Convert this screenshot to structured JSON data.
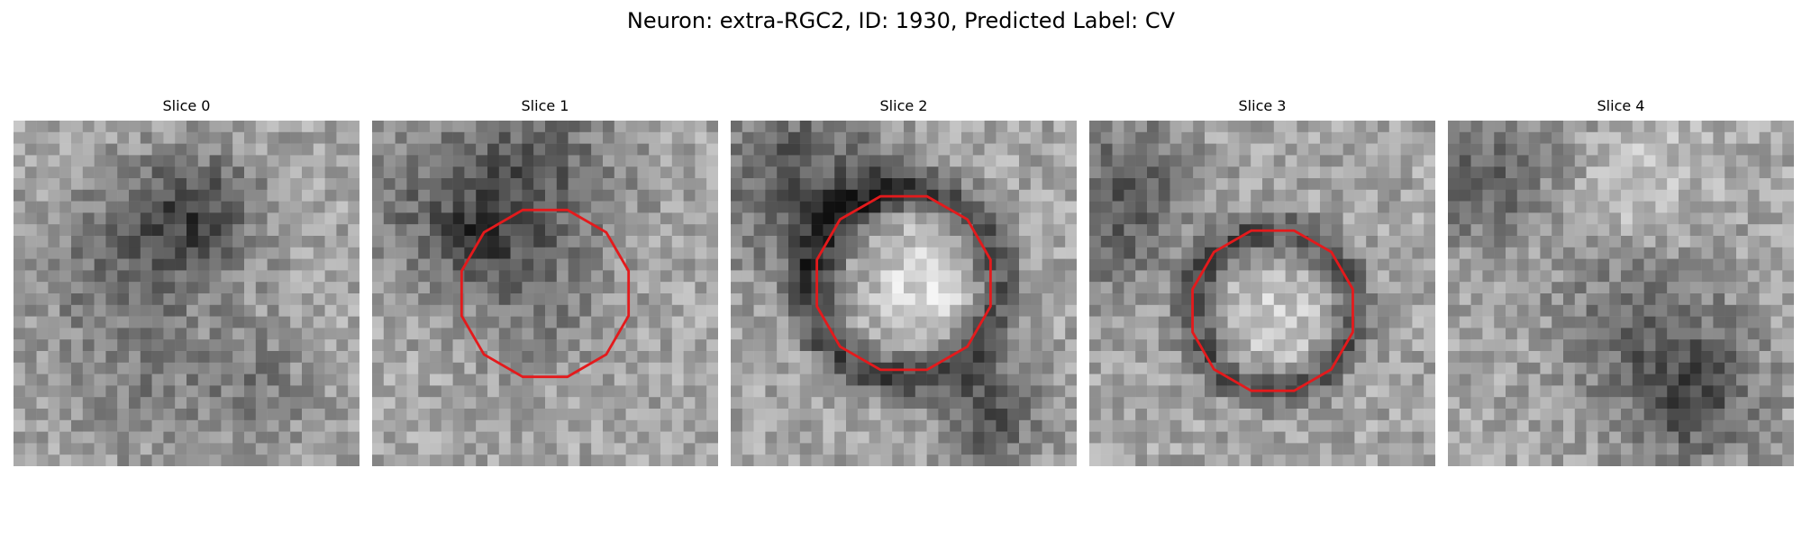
{
  "figure": {
    "title": "Neuron: extra-RGC2, ID: 1930, Predicted Label: CV"
  },
  "slices": [
    {
      "label": "Slice 0",
      "has_contour": false,
      "dark_spots": [
        [
          0.45,
          0.32,
          0.22,
          -70
        ],
        [
          0.55,
          0.25,
          0.15,
          -45
        ],
        [
          0.35,
          0.75,
          0.22,
          -35
        ],
        [
          0.7,
          0.78,
          0.18,
          -40
        ],
        [
          0.2,
          0.45,
          0.18,
          -25
        ]
      ]
    },
    {
      "label": "Slice 1",
      "has_contour": true,
      "contour_radius": 0.25,
      "contour_center": [
        0.5,
        0.5
      ],
      "dark_spots": [
        [
          0.45,
          0.18,
          0.25,
          -80
        ],
        [
          0.1,
          0.25,
          0.2,
          -40
        ],
        [
          0.45,
          0.55,
          0.2,
          -35
        ],
        [
          0.3,
          0.35,
          0.12,
          -60
        ]
      ]
    },
    {
      "label": "Slice 2",
      "has_contour": true,
      "contour_radius": 0.26,
      "contour_center": [
        0.5,
        0.47
      ],
      "ring": [
        0.5,
        0.47,
        0.27,
        0.07,
        -95
      ],
      "bright_spots": [
        [
          0.55,
          0.45,
          0.18,
          60
        ]
      ],
      "dark_spots": [
        [
          0.2,
          0.18,
          0.25,
          -80
        ],
        [
          0.75,
          0.85,
          0.15,
          -80
        ]
      ]
    },
    {
      "label": "Slice 3",
      "has_contour": true,
      "contour_radius": 0.24,
      "contour_center": [
        0.53,
        0.55
      ],
      "ring": [
        0.53,
        0.55,
        0.23,
        0.06,
        -85
      ],
      "bright_spots": [
        [
          0.55,
          0.58,
          0.15,
          40
        ]
      ],
      "dark_spots": [
        [
          0.05,
          0.3,
          0.2,
          -70
        ],
        [
          0.15,
          0.1,
          0.15,
          -40
        ]
      ]
    },
    {
      "label": "Slice 4",
      "has_contour": false,
      "dark_spots": [
        [
          0.08,
          0.2,
          0.15,
          -60
        ],
        [
          0.55,
          0.55,
          0.25,
          -50
        ],
        [
          0.7,
          0.8,
          0.2,
          -80
        ],
        [
          0.25,
          0.1,
          0.2,
          -30
        ]
      ],
      "bright_spots": [
        [
          0.55,
          0.2,
          0.2,
          40
        ]
      ]
    }
  ],
  "colors": {
    "contour": "#e41a1c",
    "background": "#ffffff"
  }
}
